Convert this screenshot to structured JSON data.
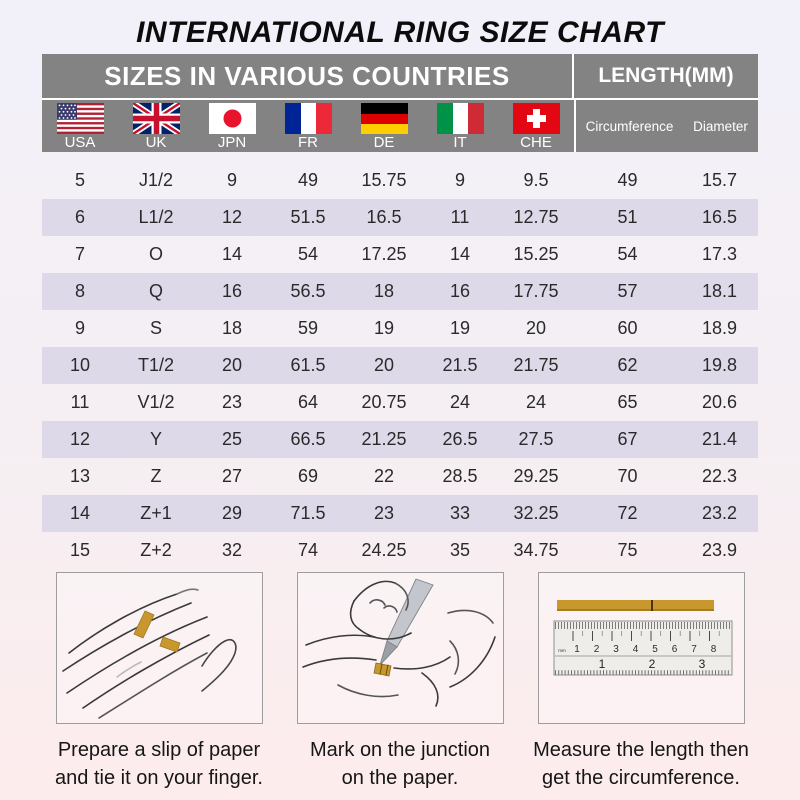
{
  "title": "INTERNATIONAL RING SIZE CHART",
  "table": {
    "header_left": "SIZES IN VARIOUS COUNTRIES",
    "header_right": "LENGTH(MM)",
    "countries": [
      "USA",
      "UK",
      "JPN",
      "FR",
      "DE",
      "IT",
      "CHE"
    ],
    "length_columns": [
      "Circumference",
      "Diameter"
    ],
    "rows": [
      [
        "5",
        "J1/2",
        "9",
        "49",
        "15.75",
        "9",
        "9.5",
        "49",
        "15.7"
      ],
      [
        "6",
        "L1/2",
        "12",
        "51.5",
        "16.5",
        "11",
        "12.75",
        "51",
        "16.5"
      ],
      [
        "7",
        "O",
        "14",
        "54",
        "17.25",
        "14",
        "15.25",
        "54",
        "17.3"
      ],
      [
        "8",
        "Q",
        "16",
        "56.5",
        "18",
        "16",
        "17.75",
        "57",
        "18.1"
      ],
      [
        "9",
        "S",
        "18",
        "59",
        "19",
        "19",
        "20",
        "60",
        "18.9"
      ],
      [
        "10",
        "T1/2",
        "20",
        "61.5",
        "20",
        "21.5",
        "21.75",
        "62",
        "19.8"
      ],
      [
        "11",
        "V1/2",
        "23",
        "64",
        "20.75",
        "24",
        "24",
        "65",
        "20.6"
      ],
      [
        "12",
        "Y",
        "25",
        "66.5",
        "21.25",
        "26.5",
        "27.5",
        "67",
        "21.4"
      ],
      [
        "13",
        "Z",
        "27",
        "69",
        "22",
        "28.5",
        "29.25",
        "70",
        "22.3"
      ],
      [
        "14",
        "Z+1",
        "29",
        "71.5",
        "23",
        "33",
        "32.25",
        "72",
        "23.2"
      ],
      [
        "15",
        "Z+2",
        "32",
        "74",
        "24.25",
        "35",
        "34.75",
        "75",
        "23.9"
      ]
    ]
  },
  "instructions": [
    {
      "illustration": "hand-with-paper-strip",
      "lines": [
        "Prepare a slip of paper",
        "and tie it on your finger."
      ]
    },
    {
      "illustration": "pen-marking-junction",
      "lines": [
        "Mark on the junction",
        "on the paper."
      ]
    },
    {
      "illustration": "ruler-measuring-strip",
      "lines": [
        "Measure the length then",
        "get the circumference."
      ]
    }
  ],
  "ruler": {
    "unit_label": "mm",
    "top_scale": [
      "1",
      "2",
      "3",
      "4",
      "5",
      "6",
      "7",
      "8"
    ],
    "bottom_scale": [
      "1",
      "2",
      "3"
    ]
  },
  "colors": {
    "background_top": "#f2f0f9",
    "background_bottom": "#fdecec",
    "header_gray": "#838383",
    "row_alt": "#ded9e9",
    "paper_strip_gold": "#c8982e",
    "text_dark": "#1c1c1c"
  }
}
